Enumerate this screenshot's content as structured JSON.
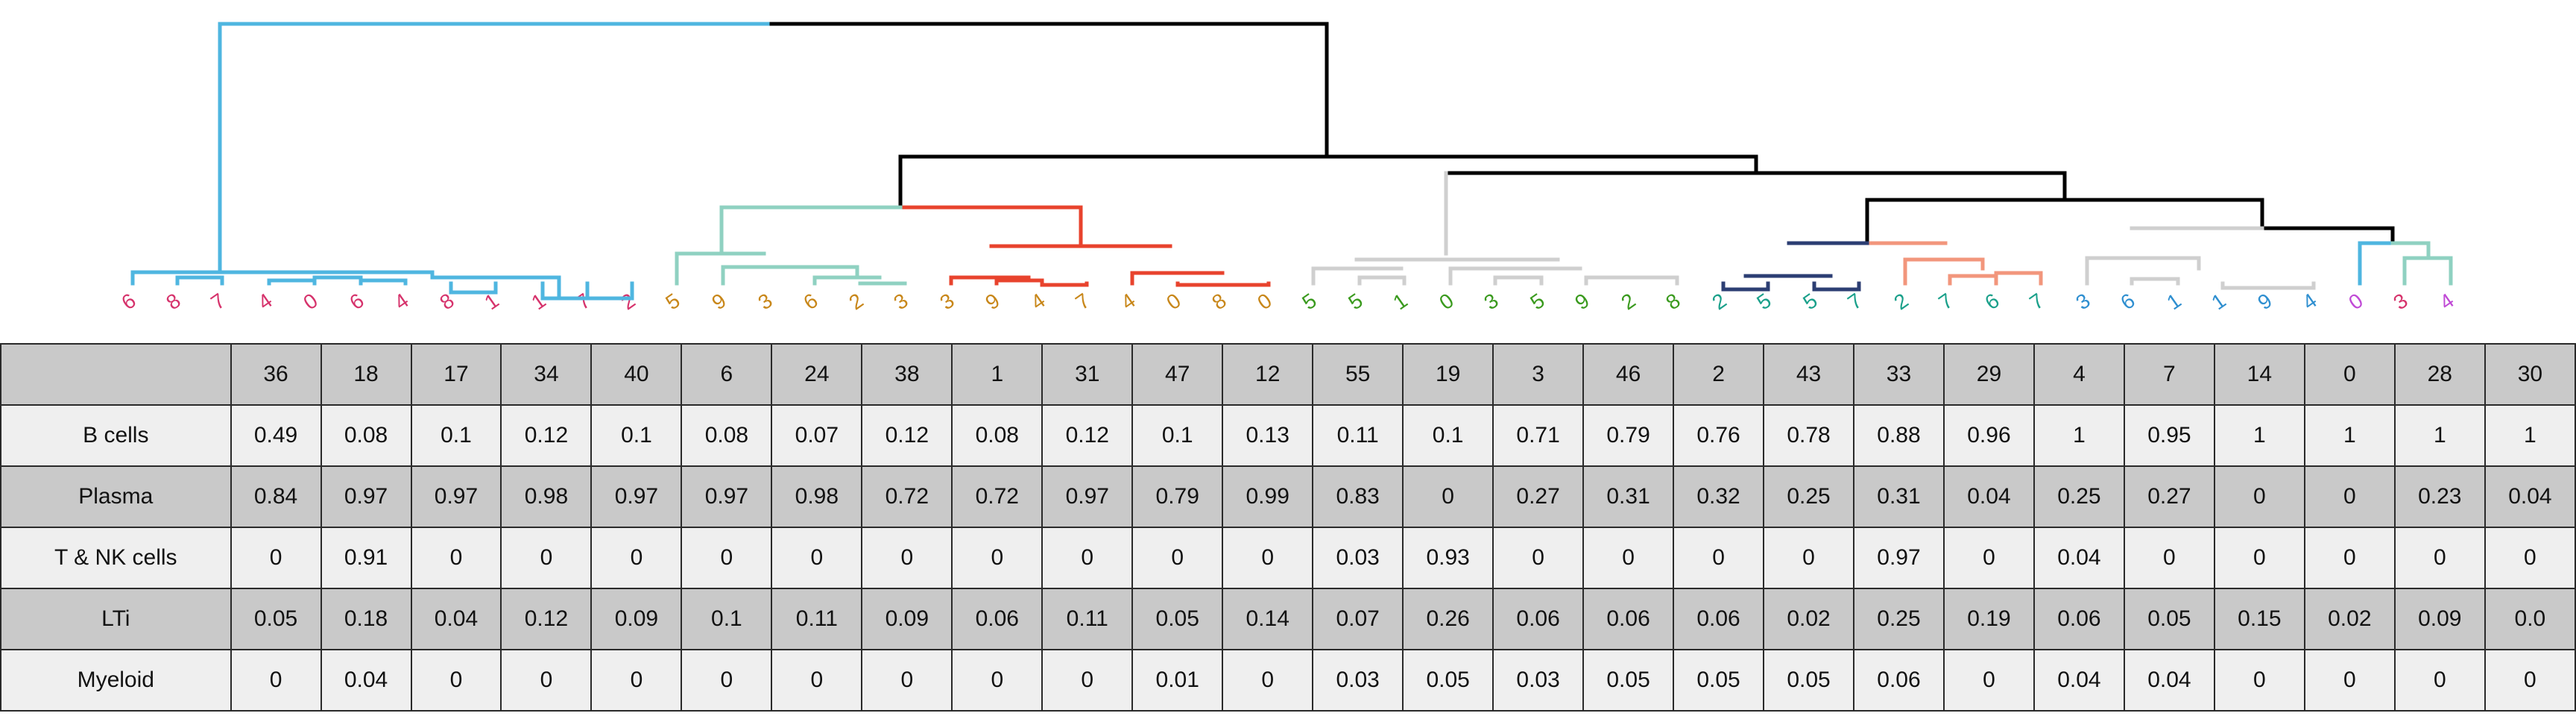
{
  "chart_data": {
    "type": "table",
    "leaf_labels": [
      {
        "text": "6",
        "color": "#d6336c"
      },
      {
        "text": "8",
        "color": "#d6336c"
      },
      {
        "text": "7",
        "color": "#d6336c"
      },
      {
        "text": "4",
        "color": "#d6336c"
      },
      {
        "text": "0",
        "color": "#d6336c"
      },
      {
        "text": "6",
        "color": "#d6336c"
      },
      {
        "text": "4",
        "color": "#d6336c"
      },
      {
        "text": "8",
        "color": "#d6336c"
      },
      {
        "text": "1",
        "color": "#d6336c"
      },
      {
        "text": "1",
        "color": "#d6336c"
      },
      {
        "text": "7",
        "color": "#d6336c"
      },
      {
        "text": "2",
        "color": "#d6336c"
      },
      {
        "text": "5",
        "color": "#c8871a"
      },
      {
        "text": "9",
        "color": "#c8871a"
      },
      {
        "text": "3",
        "color": "#c8871a"
      },
      {
        "text": "6",
        "color": "#c8871a"
      },
      {
        "text": "2",
        "color": "#c8871a"
      },
      {
        "text": "3",
        "color": "#c8871a"
      },
      {
        "text": "3",
        "color": "#c8871a"
      },
      {
        "text": "9",
        "color": "#c8871a"
      },
      {
        "text": "4",
        "color": "#c8871a"
      },
      {
        "text": "7",
        "color": "#c8871a"
      },
      {
        "text": "4",
        "color": "#c8871a"
      },
      {
        "text": "0",
        "color": "#c8871a"
      },
      {
        "text": "8",
        "color": "#c8871a"
      },
      {
        "text": "0",
        "color": "#c8871a"
      },
      {
        "text": "5",
        "color": "#3a9a1e"
      },
      {
        "text": "5",
        "color": "#3a9a1e"
      },
      {
        "text": "1",
        "color": "#3a9a1e"
      },
      {
        "text": "0",
        "color": "#3a9a1e"
      },
      {
        "text": "3",
        "color": "#3a9a1e"
      },
      {
        "text": "5",
        "color": "#3a9a1e"
      },
      {
        "text": "9",
        "color": "#3a9a1e"
      },
      {
        "text": "2",
        "color": "#3a9a1e"
      },
      {
        "text": "8",
        "color": "#3a9a1e"
      },
      {
        "text": "2",
        "color": "#1aa08a"
      },
      {
        "text": "5",
        "color": "#1aa08a"
      },
      {
        "text": "5",
        "color": "#1aa08a"
      },
      {
        "text": "7",
        "color": "#1aa08a"
      },
      {
        "text": "2",
        "color": "#1aa08a"
      },
      {
        "text": "7",
        "color": "#1aa08a"
      },
      {
        "text": "6",
        "color": "#1aa08a"
      },
      {
        "text": "7",
        "color": "#1aa08a"
      },
      {
        "text": "3",
        "color": "#2f8fd0"
      },
      {
        "text": "6",
        "color": "#2f8fd0"
      },
      {
        "text": "1",
        "color": "#2f8fd0"
      },
      {
        "text": "1",
        "color": "#2f8fd0"
      },
      {
        "text": "9",
        "color": "#2f8fd0"
      },
      {
        "text": "4",
        "color": "#2f8fd0"
      },
      {
        "text": "0",
        "color": "#c04ad6"
      },
      {
        "text": "3",
        "color": "#d6336c"
      },
      {
        "text": "4",
        "color": "#c04ad6"
      }
    ],
    "branch_colors": {
      "root": "#000000",
      "cyan": "#4fb6e0",
      "mint": "#8fd1c1",
      "red": "#e8432d",
      "grey": "#cfcfcf",
      "navy": "#2c3e73",
      "salmon": "#f2967c"
    },
    "table": {
      "header_row": [
        "",
        "36",
        "18",
        "17",
        "34",
        "40",
        "6",
        "24",
        "38",
        "1",
        "31",
        "47",
        "12",
        "55",
        "19",
        "3",
        "46",
        "2",
        "43",
        "33",
        "29",
        "4",
        "7",
        "14",
        "0",
        "28",
        "30"
      ],
      "rows": [
        {
          "label": "B cells",
          "values": [
            "0.49",
            "0.08",
            "0.1",
            "0.12",
            "0.1",
            "0.08",
            "0.07",
            "0.12",
            "0.08",
            "0.12",
            "0.1",
            "0.13",
            "0.11",
            "0.1",
            "0.71",
            "0.79",
            "0.76",
            "0.78",
            "0.88",
            "0.96",
            "1",
            "0.95",
            "1",
            "1",
            "1",
            "1"
          ]
        },
        {
          "label": "Plasma",
          "values": [
            "0.84",
            "0.97",
            "0.97",
            "0.98",
            "0.97",
            "0.97",
            "0.98",
            "0.72",
            "0.72",
            "0.97",
            "0.79",
            "0.99",
            "0.83",
            "0",
            "0.27",
            "0.31",
            "0.32",
            "0.25",
            "0.31",
            "0.04",
            "0.25",
            "0.27",
            "0",
            "0",
            "0.23",
            "0.04"
          ]
        },
        {
          "label": "T & NK cells",
          "values": [
            "0",
            "0.91",
            "0",
            "0",
            "0",
            "0",
            "0",
            "0",
            "0",
            "0",
            "0",
            "0",
            "0.03",
            "0.93",
            "0",
            "0",
            "0",
            "0",
            "0.97",
            "0",
            "0.04",
            "0",
            "0",
            "0",
            "0",
            "0"
          ]
        },
        {
          "label": "LTi",
          "values": [
            "0.05",
            "0.18",
            "0.04",
            "0.12",
            "0.09",
            "0.1",
            "0.11",
            "0.09",
            "0.06",
            "0.11",
            "0.05",
            "0.14",
            "0.07",
            "0.26",
            "0.06",
            "0.06",
            "0.06",
            "0.02",
            "0.25",
            "0.19",
            "0.06",
            "0.05",
            "0.15",
            "0.02",
            "0.09",
            "0.0"
          ]
        },
        {
          "label": "Myeloid",
          "values": [
            "0",
            "0.04",
            "0",
            "0",
            "0",
            "0",
            "0",
            "0",
            "0",
            "0",
            "0.01",
            "0",
            "0.03",
            "0.05",
            "0.03",
            "0.05",
            "0.05",
            "0.05",
            "0.06",
            "0",
            "0.04",
            "0.04",
            "0",
            "0",
            "0",
            "0"
          ]
        }
      ]
    }
  }
}
